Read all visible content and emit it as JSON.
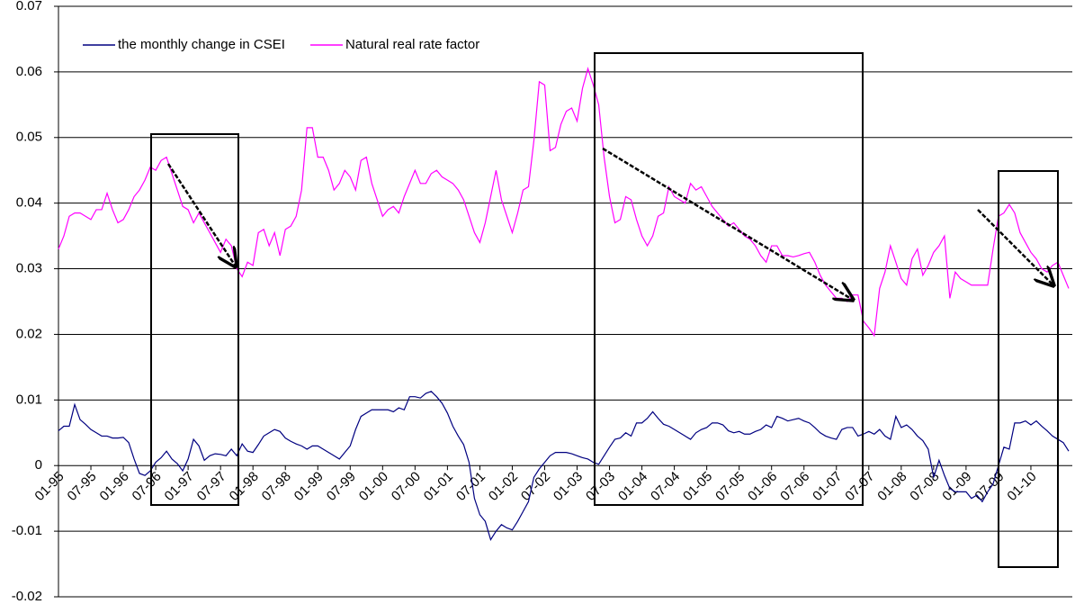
{
  "chart_data": {
    "type": "line",
    "categories": [
      "01-95",
      null,
      null,
      null,
      null,
      null,
      "07-95",
      null,
      null,
      null,
      null,
      null,
      "01-96",
      null,
      null,
      null,
      null,
      null,
      "07-96",
      null,
      null,
      null,
      null,
      null,
      "01-97",
      null,
      null,
      null,
      null,
      null,
      "07-97",
      null,
      null,
      null,
      null,
      null,
      "01-98",
      null,
      null,
      null,
      null,
      null,
      "07-98",
      null,
      null,
      null,
      null,
      null,
      "01-99",
      null,
      null,
      null,
      null,
      null,
      "07-99",
      null,
      null,
      null,
      null,
      null,
      "01-00",
      null,
      null,
      null,
      null,
      null,
      "07-00",
      null,
      null,
      null,
      null,
      null,
      "01-01",
      null,
      null,
      null,
      null,
      null,
      "07-01",
      null,
      null,
      null,
      null,
      null,
      "01-02",
      null,
      null,
      null,
      null,
      null,
      "07-02",
      null,
      null,
      null,
      null,
      null,
      "01-03",
      null,
      null,
      null,
      null,
      null,
      "07-03",
      null,
      null,
      null,
      null,
      null,
      "01-04",
      null,
      null,
      null,
      null,
      null,
      "07-04",
      null,
      null,
      null,
      null,
      null,
      "01-05",
      null,
      null,
      null,
      null,
      null,
      "07-05",
      null,
      null,
      null,
      null,
      null,
      "01-06",
      null,
      null,
      null,
      null,
      null,
      "07-06",
      null,
      null,
      null,
      null,
      null,
      "01-07",
      null,
      null,
      null,
      null,
      null,
      "07-07",
      null,
      null,
      null,
      null,
      null,
      "01-08",
      null,
      null,
      null,
      null,
      null,
      "07-08",
      null,
      null,
      null,
      null,
      null,
      "01-09",
      null,
      null,
      null,
      null,
      null,
      "07-09",
      null,
      null,
      null,
      null,
      null,
      "01-10",
      null,
      null,
      null,
      null,
      null,
      null,
      null
    ],
    "series": [
      {
        "name": "the monthly change in CSEI",
        "color": "#000080",
        "values": [
          0.0053,
          0.006,
          0.006,
          0.0093,
          0.007,
          0.0063,
          0.0055,
          0.005,
          0.0045,
          0.0045,
          0.0042,
          0.0042,
          0.0043,
          0.0035,
          0.001,
          -0.0012,
          -0.0015,
          -0.0008,
          0.0005,
          0.0012,
          0.0022,
          0.001,
          0.0003,
          -0.0008,
          0.001,
          0.004,
          0.003,
          0.0008,
          0.0015,
          0.0018,
          0.0017,
          0.0015,
          0.0025,
          0.0015,
          0.0033,
          0.0022,
          0.002,
          0.0032,
          0.0045,
          0.005,
          0.0055,
          0.0052,
          0.0042,
          0.0037,
          0.0033,
          0.003,
          0.0025,
          0.003,
          0.003,
          0.0025,
          0.002,
          0.0015,
          0.001,
          0.002,
          0.003,
          0.0055,
          0.0075,
          0.008,
          0.0085,
          0.0085,
          0.0085,
          0.0085,
          0.0082,
          0.0088,
          0.0085,
          0.0105,
          0.0105,
          0.0103,
          0.011,
          0.0113,
          0.0105,
          0.0095,
          0.008,
          0.006,
          0.0045,
          0.0032,
          0.0005,
          -0.005,
          -0.0075,
          -0.0085,
          -0.0113,
          -0.01,
          -0.009,
          -0.0095,
          -0.0098,
          -0.0085,
          -0.007,
          -0.0055,
          -0.0018,
          -0.0005,
          0.0005,
          0.0015,
          0.002,
          0.002,
          0.002,
          0.0018,
          0.0015,
          0.0012,
          0.001,
          0.0005,
          0.0002,
          0.0015,
          0.0028,
          0.004,
          0.0042,
          0.005,
          0.0045,
          0.0065,
          0.0065,
          0.0072,
          0.0082,
          0.0072,
          0.0063,
          0.006,
          0.0055,
          0.005,
          0.0045,
          0.004,
          0.005,
          0.0055,
          0.0058,
          0.0065,
          0.0065,
          0.0062,
          0.0053,
          0.005,
          0.0052,
          0.0048,
          0.0048,
          0.0052,
          0.0055,
          0.0062,
          0.0058,
          0.0075,
          0.0072,
          0.0068,
          0.007,
          0.0072,
          0.0068,
          0.0065,
          0.0058,
          0.005,
          0.0045,
          0.0042,
          0.004,
          0.0055,
          0.0058,
          0.0058,
          0.0045,
          0.0048,
          0.0052,
          0.0048,
          0.0055,
          0.0045,
          0.004,
          0.0075,
          0.0058,
          0.0062,
          0.0055,
          0.0045,
          0.0038,
          0.0025,
          -0.0018,
          0.0008,
          -0.0015,
          -0.0035,
          -0.004,
          -0.004,
          -0.004,
          -0.005,
          -0.0045,
          -0.0055,
          -0.004,
          -0.0028,
          0,
          0.0028,
          0.0025,
          0.0065,
          0.0065,
          0.0068,
          0.0062,
          0.0068,
          0.006,
          0.0053,
          0.0045,
          0.004,
          0.0035,
          0.0022
        ]
      },
      {
        "name": "Natural real rate factor",
        "color": "#ff00ff",
        "values": [
          0.033,
          0.035,
          0.038,
          0.0385,
          0.0385,
          0.038,
          0.0375,
          0.039,
          0.039,
          0.0415,
          0.039,
          0.037,
          0.0375,
          0.039,
          0.041,
          0.042,
          0.0435,
          0.0455,
          0.045,
          0.0465,
          0.047,
          0.0445,
          0.042,
          0.0395,
          0.039,
          0.037,
          0.0385,
          0.037,
          0.0355,
          0.034,
          0.0325,
          0.0345,
          0.0335,
          0.03,
          0.0288,
          0.031,
          0.0305,
          0.0355,
          0.036,
          0.0335,
          0.0355,
          0.032,
          0.036,
          0.0365,
          0.038,
          0.042,
          0.0515,
          0.0515,
          0.047,
          0.047,
          0.045,
          0.042,
          0.043,
          0.045,
          0.044,
          0.042,
          0.0465,
          0.047,
          0.043,
          0.0405,
          0.038,
          0.039,
          0.0395,
          0.0385,
          0.041,
          0.043,
          0.045,
          0.043,
          0.043,
          0.0445,
          0.045,
          0.044,
          0.0435,
          0.043,
          0.042,
          0.0405,
          0.038,
          0.0355,
          0.034,
          0.037,
          0.041,
          0.045,
          0.0405,
          0.038,
          0.0355,
          0.0385,
          0.042,
          0.0425,
          0.0495,
          0.0585,
          0.058,
          0.048,
          0.0485,
          0.052,
          0.054,
          0.0545,
          0.0525,
          0.0575,
          0.0605,
          0.058,
          0.055,
          0.047,
          0.041,
          0.037,
          0.0375,
          0.041,
          0.0405,
          0.0375,
          0.035,
          0.0335,
          0.035,
          0.038,
          0.0385,
          0.0425,
          0.041,
          0.0405,
          0.04,
          0.043,
          0.042,
          0.0425,
          0.041,
          0.0395,
          0.0385,
          0.0375,
          0.0365,
          0.037,
          0.036,
          0.035,
          0.0345,
          0.0335,
          0.032,
          0.031,
          0.0335,
          0.0335,
          0.032,
          0.032,
          0.0318,
          0.032,
          0.0323,
          0.0325,
          0.031,
          0.029,
          0.0275,
          0.0265,
          0.0255,
          0.0255,
          0.025,
          0.026,
          0.026,
          0.022,
          0.021,
          0.0198,
          0.027,
          0.0295,
          0.0335,
          0.031,
          0.0285,
          0.0275,
          0.0315,
          0.033,
          0.029,
          0.0305,
          0.0325,
          0.0335,
          0.035,
          0.0255,
          0.0295,
          0.0285,
          0.028,
          0.0275,
          0.0275,
          0.0275,
          0.0275,
          0.033,
          0.038,
          0.0385,
          0.0398,
          0.0385,
          0.0355,
          0.034,
          0.0325,
          0.0315,
          0.03,
          0.0295,
          0.0305,
          0.031,
          0.029,
          0.027
        ]
      }
    ],
    "ylim": [
      -0.02,
      0.07
    ],
    "yticks": [
      -0.02,
      -0.01,
      0,
      0.01,
      0.02,
      0.03,
      0.04,
      0.05,
      0.06,
      0.07
    ],
    "grid": true,
    "legend": "top-left"
  }
}
